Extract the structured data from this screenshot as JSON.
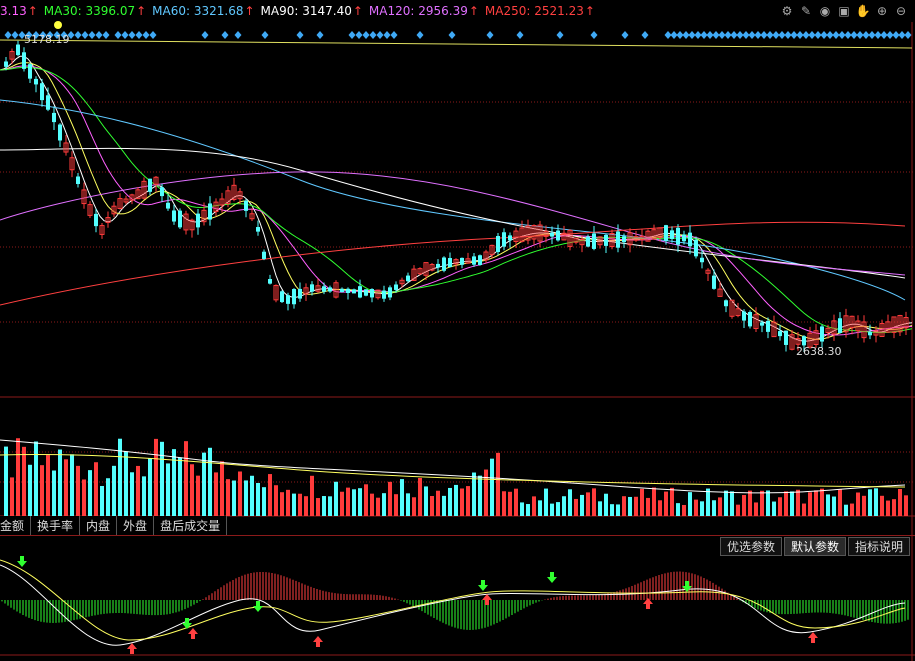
{
  "ma_legend": [
    {
      "text": "3.13",
      "arrow": "↑",
      "color": "#ff60ff"
    },
    {
      "text": "MA30: 3396.07",
      "arrow": "↑",
      "color": "#30ff30"
    },
    {
      "text": "MA60: 3321.68",
      "arrow": "↑",
      "color": "#60c8ff"
    },
    {
      "text": "MA90: 3147.40",
      "arrow": "↑",
      "color": "#ffffff"
    },
    {
      "text": "MA120: 2956.39",
      "arrow": "↑",
      "color": "#e070ff"
    },
    {
      "text": "MA250: 2521.23",
      "arrow": "↑",
      "color": "#ff4040"
    }
  ],
  "toolbar_icons": [
    "gear-icon",
    "pen-icon",
    "eye-icon",
    "box-icon",
    "hand-icon",
    "plus-icon",
    "minus-icon"
  ],
  "annotations": {
    "high_label": "5178.19",
    "low_label": "2638.30"
  },
  "tabs": [
    "金额",
    "换手率",
    "内盘",
    "外盘",
    "盘后成交量"
  ],
  "param_buttons": [
    {
      "label": "优选参数",
      "active": false
    },
    {
      "label": "默认参数",
      "active": true
    },
    {
      "label": "指标说明",
      "active": false
    }
  ],
  "colors": {
    "up": "#ff3b3b",
    "down": "#54ffff",
    "grid": "#8b1a1a",
    "diamond": "#3fa9f5",
    "yellow_dot": "#ffff40"
  }
}
